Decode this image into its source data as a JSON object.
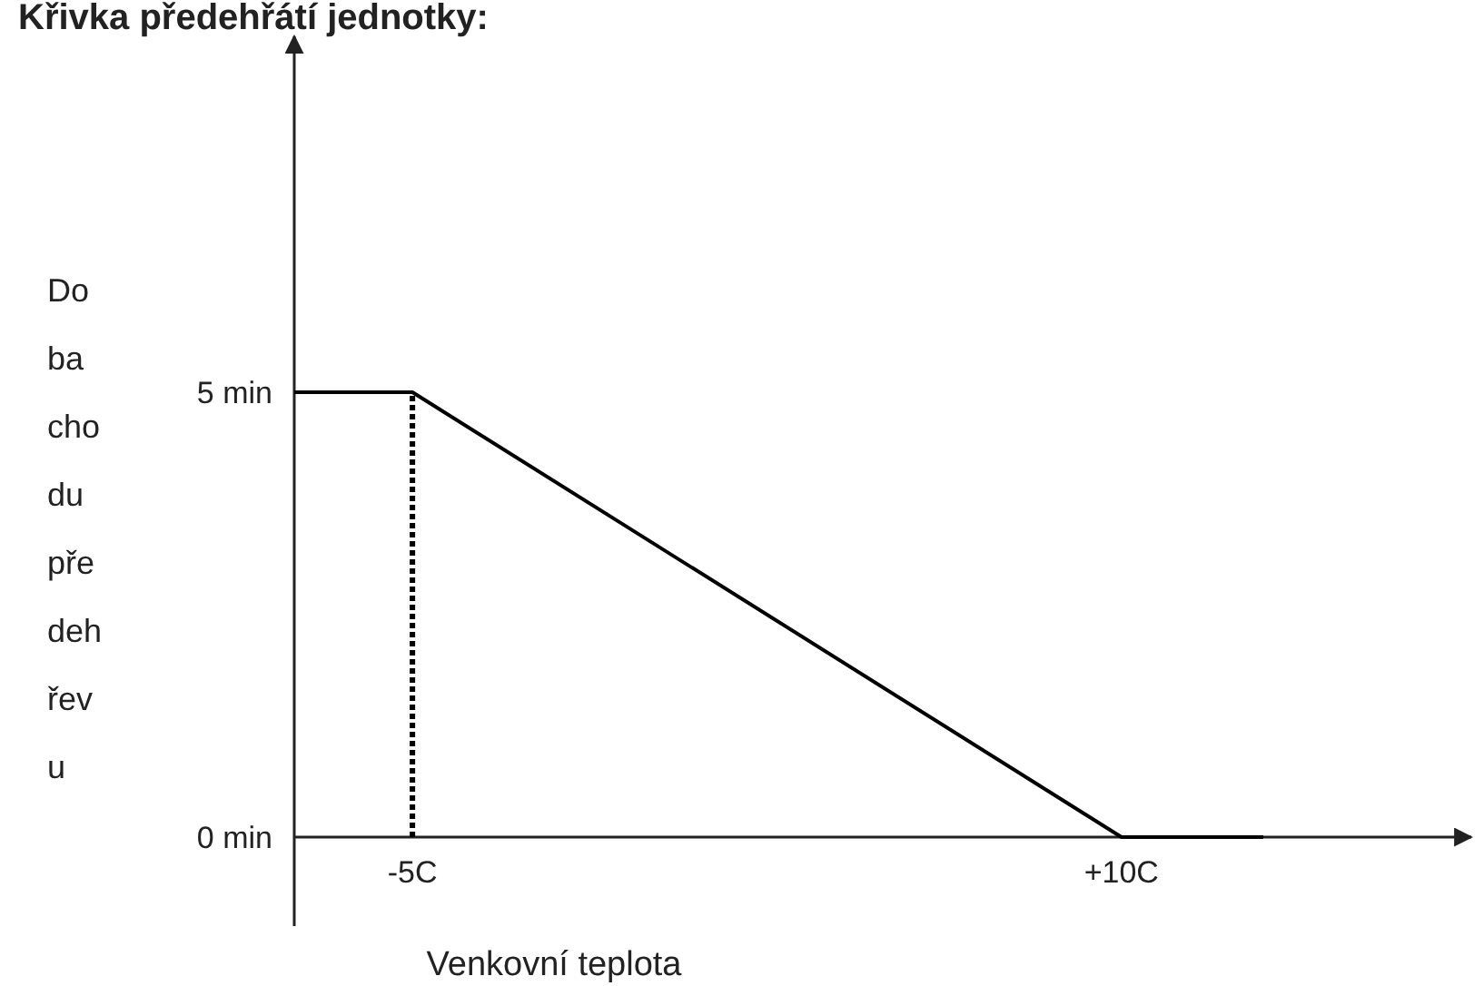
{
  "chart_data": {
    "type": "line",
    "title": "Křivka předehřátí jednotky:",
    "xlabel": "Venkovní teplota",
    "ylabel": "Doba chodu předehřevu",
    "xlim": [
      -7.5,
      17.4
    ],
    "ylim": [
      -1,
      9
    ],
    "xticks": [
      {
        "value": -5,
        "label": "-5C"
      },
      {
        "value": 10,
        "label": "+10C"
      }
    ],
    "yticks": [
      {
        "value": 0,
        "label": "0 min"
      },
      {
        "value": 5,
        "label": "5 min"
      }
    ],
    "series": [
      {
        "color": "#000000",
        "x": [
          -7.5,
          -5,
          10,
          13
        ],
        "values": [
          5,
          5,
          0,
          0
        ],
        "line_style": "solid"
      },
      {
        "color": "#000000",
        "x": [
          -5,
          -5
        ],
        "values": [
          0,
          5
        ],
        "line_style": "dotted"
      }
    ],
    "marker": "none"
  }
}
